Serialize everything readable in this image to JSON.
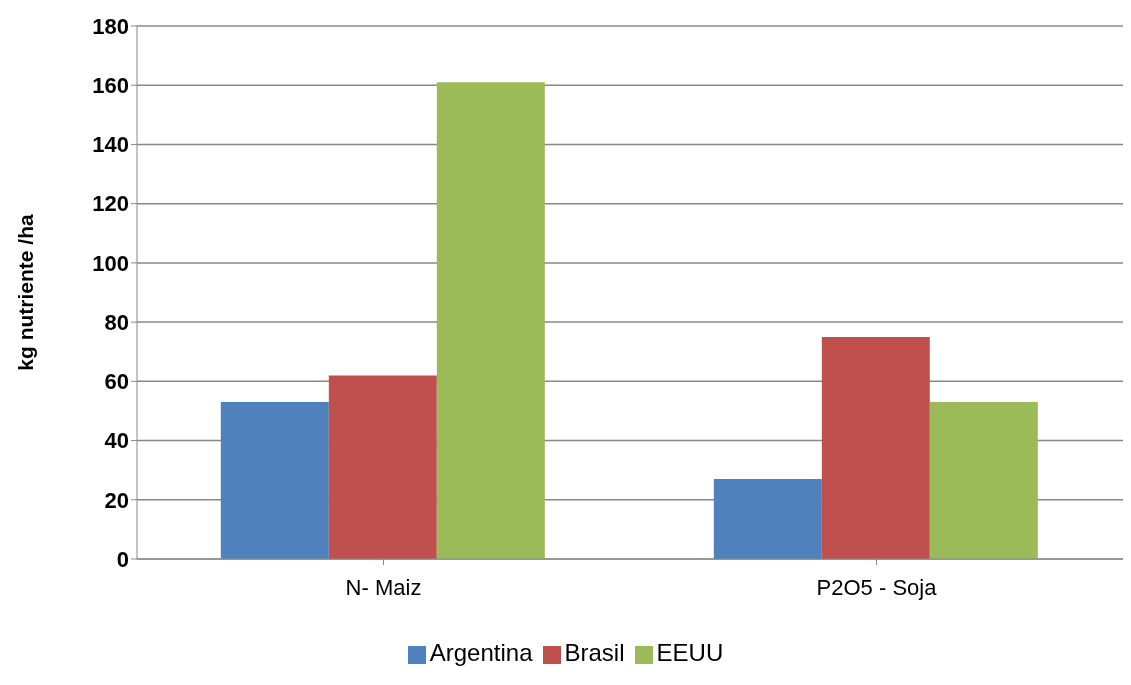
{
  "chart_data": {
    "type": "bar",
    "ylabel": "kg nutriente /ha",
    "categories": [
      "N- Maiz",
      "P2O5 - Soja"
    ],
    "series": [
      {
        "name": "Argentina",
        "color": "#4f81bd",
        "values": [
          53,
          27
        ]
      },
      {
        "name": "Brasil",
        "color": "#c0504d",
        "values": [
          62,
          75
        ]
      },
      {
        "name": "EEUU",
        "color": "#9bbb59",
        "values": [
          161,
          53
        ]
      }
    ],
    "ylim": [
      0,
      180
    ],
    "yticks": [
      0,
      20,
      40,
      60,
      80,
      100,
      120,
      140,
      160,
      180
    ],
    "grid": "y",
    "legend": "bottom"
  }
}
